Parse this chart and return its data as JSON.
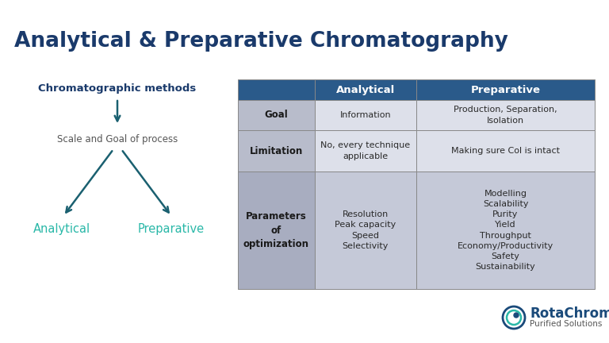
{
  "title": "Analytical & Preparative Chromatography",
  "title_color": "#1a3a6b",
  "bg_color": "#ffffff",
  "diagram": {
    "top_label": "Chromatographic methods",
    "top_label_color": "#1a3a6b",
    "mid_label": "Scale and Goal of process",
    "mid_label_color": "#555555",
    "left_label": "Analytical",
    "right_label": "Preparative",
    "leaf_color": "#2ab8a8",
    "arrow_color": "#1a6070"
  },
  "table": {
    "header_bg": "#2a5a8a",
    "header_text_color": "#ffffff",
    "row_bg_odd": "#dde0ea",
    "row_bg_even": "#dde0ea",
    "row_bg_last": "#c5c9d8",
    "col0_bg_odd": "#b8bccb",
    "col0_bg_even": "#b8bccb",
    "col0_bg_last": "#a8adc0",
    "text_color": "#2a2a2a",
    "bold_color": "#1a1a1a",
    "grid_color": "#999999",
    "headers": [
      "",
      "Analytical",
      "Preparative"
    ],
    "rows": [
      {
        "label": "Goal",
        "analytical": "Information",
        "preparative": "Production, Separation,\nIsolation"
      },
      {
        "label": "Limitation",
        "analytical": "No, every technique\napplicable",
        "preparative": "Making sure Col is intact"
      },
      {
        "label": "Parameters\nof\noptimization",
        "analytical": "Resolution\nPeak capacity\nSpeed\nSelectivity",
        "preparative": "Modelling\nScalability\nPurity\nYield\nThroughput\nEconomy/Productivity\nSafety\nSustainability"
      }
    ]
  },
  "logo_text": "RotaChrom",
  "logo_sub": "Purified Solutions"
}
